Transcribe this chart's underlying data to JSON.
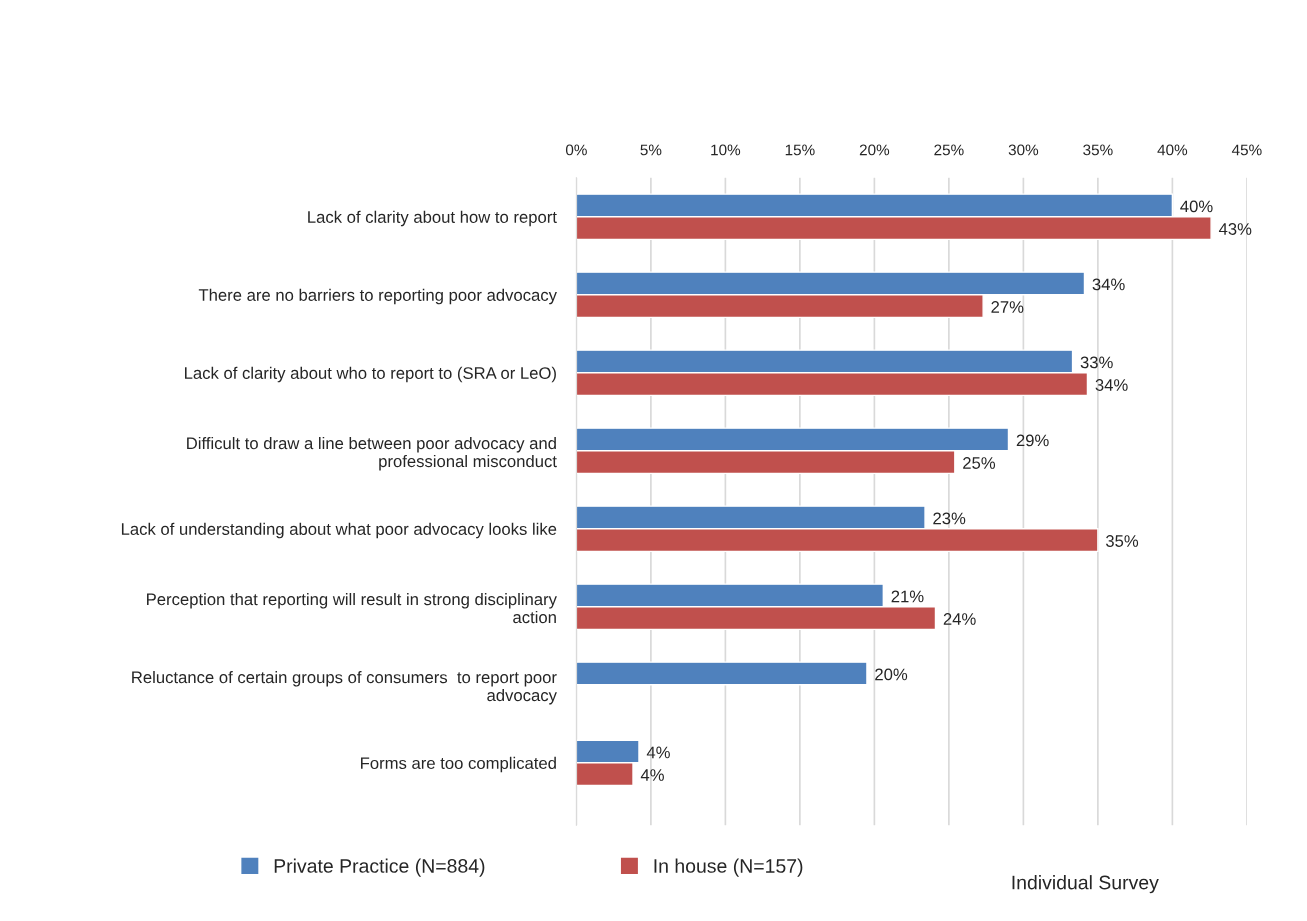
{
  "chart_data": {
    "type": "bar",
    "orientation": "horizontal",
    "categories": [
      "Lack of clarity about how to report",
      "There are no barriers to reporting poor advocacy",
      "Lack of clarity about who to report to (SRA or LeO)",
      "Difficult to draw a line between poor advocacy and\nprofessional misconduct",
      "Lack of understanding about what poor advocacy looks like",
      "Perception that reporting will result in strong disciplinary\naction",
      "Reluctance of certain groups of consumers  to report poor\nadvocacy",
      "Forms are too complicated"
    ],
    "series": [
      {
        "name": "Private Practice (N=884)",
        "color": "#4f81bd",
        "values": [
          40.0,
          34.1,
          33.3,
          29.0,
          23.4,
          20.6,
          19.5,
          4.2
        ],
        "value_labels": [
          "40%",
          "34%",
          "33%",
          "29%",
          "23%",
          "21%",
          "20%",
          "4%"
        ]
      },
      {
        "name": "In house (N=157)",
        "color": "#c0504d",
        "values": [
          42.6,
          27.3,
          34.3,
          25.4,
          35.0,
          24.1,
          null,
          3.8
        ],
        "value_labels": [
          "43%",
          "27%",
          "34%",
          "25%",
          "35%",
          "24%",
          null,
          "4%"
        ]
      }
    ],
    "xlim": [
      0,
      45
    ],
    "xticks": [
      {
        "value": 0,
        "label": "0%"
      },
      {
        "value": 5,
        "label": "5%"
      },
      {
        "value": 10,
        "label": "10%"
      },
      {
        "value": 15,
        "label": "15%"
      },
      {
        "value": 20,
        "label": "20%"
      },
      {
        "value": 25,
        "label": "25%"
      },
      {
        "value": 30,
        "label": "30%"
      },
      {
        "value": 35,
        "label": "35%"
      },
      {
        "value": 40,
        "label": "40%"
      },
      {
        "value": 45,
        "label": "45%"
      }
    ],
    "grid": "x",
    "legend": "bottom",
    "annotations": [
      "Individual Survey"
    ]
  }
}
